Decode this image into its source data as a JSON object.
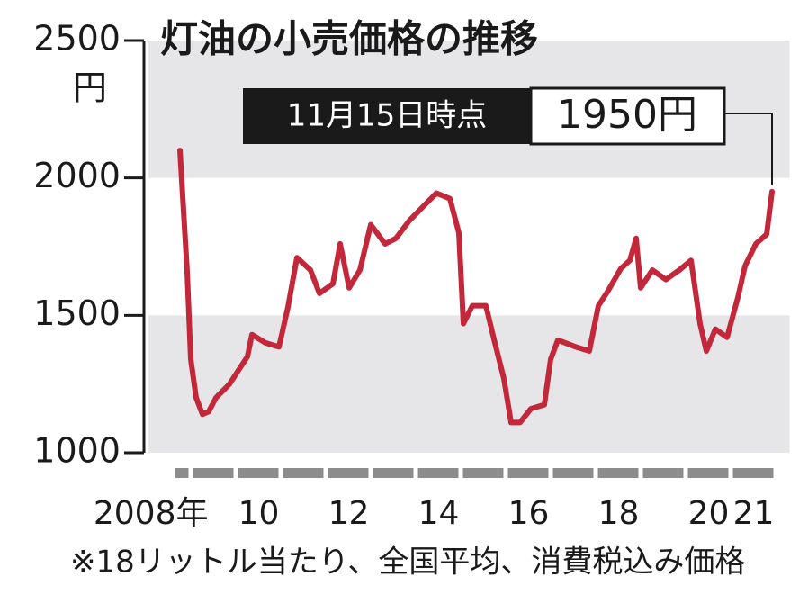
{
  "chart_data": {
    "type": "line",
    "title": "灯油の小売価格の推移",
    "y_unit": "円",
    "note": "※18リットル当たり、全国平均、消費税込み価格",
    "annotation": {
      "date": "11月15日時点",
      "text": "1950円"
    },
    "color": "#c3273a",
    "x": [
      2008.75,
      2008.91,
      2008.99,
      2009.11,
      2009.25,
      2009.39,
      2009.55,
      2009.85,
      2010.05,
      2010.25,
      2010.35,
      2010.65,
      2010.95,
      2011.15,
      2011.35,
      2011.65,
      2011.85,
      2012.15,
      2012.31,
      2012.51,
      2012.75,
      2012.99,
      2013.31,
      2013.55,
      2013.85,
      2014.15,
      2014.45,
      2014.75,
      2014.95,
      2015.05,
      2015.25,
      2015.55,
      2015.75,
      2015.95,
      2016.11,
      2016.31,
      2016.55,
      2016.85,
      2016.99,
      2017.15,
      2017.55,
      2017.85,
      2018.05,
      2018.25,
      2018.55,
      2018.75,
      2018.89,
      2018.99,
      2019.25,
      2019.55,
      2019.85,
      2020.11,
      2020.31,
      2020.45,
      2020.65,
      2020.91,
      2021.15,
      2021.31,
      2021.55,
      2021.79,
      2021.91
    ],
    "values": [
      2100,
      1660,
      1340,
      1200,
      1140,
      1150,
      1200,
      1250,
      1300,
      1350,
      1430,
      1400,
      1385,
      1530,
      1710,
      1665,
      1580,
      1615,
      1760,
      1600,
      1665,
      1830,
      1760,
      1780,
      1845,
      1895,
      1945,
      1925,
      1800,
      1470,
      1535,
      1535,
      1400,
      1270,
      1110,
      1110,
      1160,
      1175,
      1340,
      1410,
      1385,
      1370,
      1535,
      1585,
      1670,
      1700,
      1780,
      1600,
      1665,
      1630,
      1665,
      1700,
      1470,
      1370,
      1450,
      1420,
      1565,
      1680,
      1760,
      1795,
      1950
    ],
    "xlim": [
      2008.0,
      2022.3
    ],
    "ylim": [
      1000,
      2500
    ],
    "yticks": [
      1000,
      1500,
      2000,
      2500
    ],
    "xticks": [
      {
        "value": 2008.5,
        "label": "2008年"
      },
      {
        "value": 2010.5,
        "label": "10"
      },
      {
        "value": 2012.5,
        "label": "12"
      },
      {
        "value": 2014.5,
        "label": "14"
      },
      {
        "value": 2016.5,
        "label": "16"
      },
      {
        "value": 2018.5,
        "label": "18"
      },
      {
        "value": 2020.5,
        "label": "20"
      },
      {
        "value": 2021.5,
        "label": "21"
      }
    ],
    "xminorticks": [
      2008,
      2009,
      2010,
      2011,
      2012,
      2013,
      2014,
      2015,
      2016,
      2017,
      2018,
      2019,
      2020,
      2021
    ],
    "bands": true
  }
}
